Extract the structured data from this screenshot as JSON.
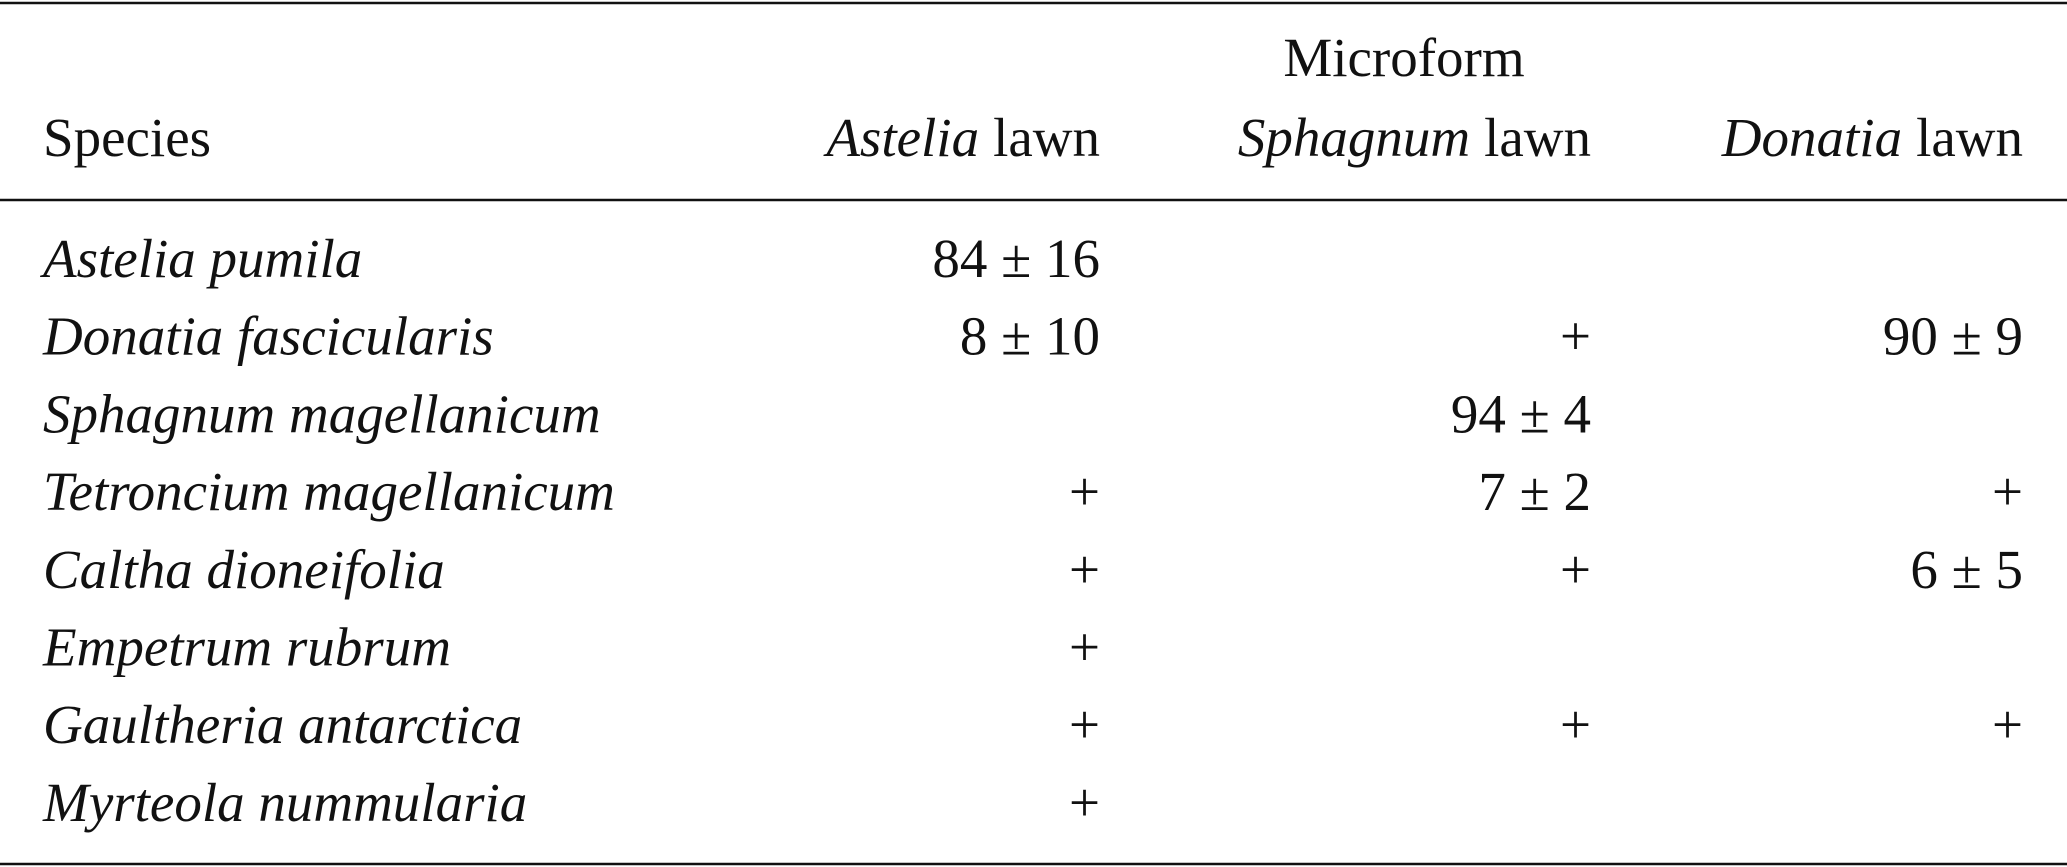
{
  "header": {
    "group": "Microform",
    "species": "Species",
    "columns": [
      {
        "genus": "Astelia",
        "suffix": "lawn"
      },
      {
        "genus": "Sphagnum",
        "suffix": "lawn"
      },
      {
        "genus": "Donatia",
        "suffix": "lawn"
      }
    ]
  },
  "table": {
    "rows": [
      [
        "Astelia pumila",
        "84 ± 16",
        null,
        null
      ],
      [
        "Donatia fascicularis",
        "8 ± 10",
        "+",
        "90 ± 9"
      ],
      [
        "Sphagnum magellanicum",
        null,
        "94 ± 4",
        null
      ],
      [
        "Tetroncium magellanicum",
        "+",
        "7 ± 2",
        "+"
      ],
      [
        "Caltha dioneifolia",
        "+",
        "+",
        "6 ± 5"
      ],
      [
        "Empetrum rubrum",
        "+",
        null,
        null
      ],
      [
        "Gaultheria antarctica",
        "+",
        "+",
        "+"
      ],
      [
        "Myrteola nummularia",
        "+",
        null,
        null
      ]
    ]
  }
}
